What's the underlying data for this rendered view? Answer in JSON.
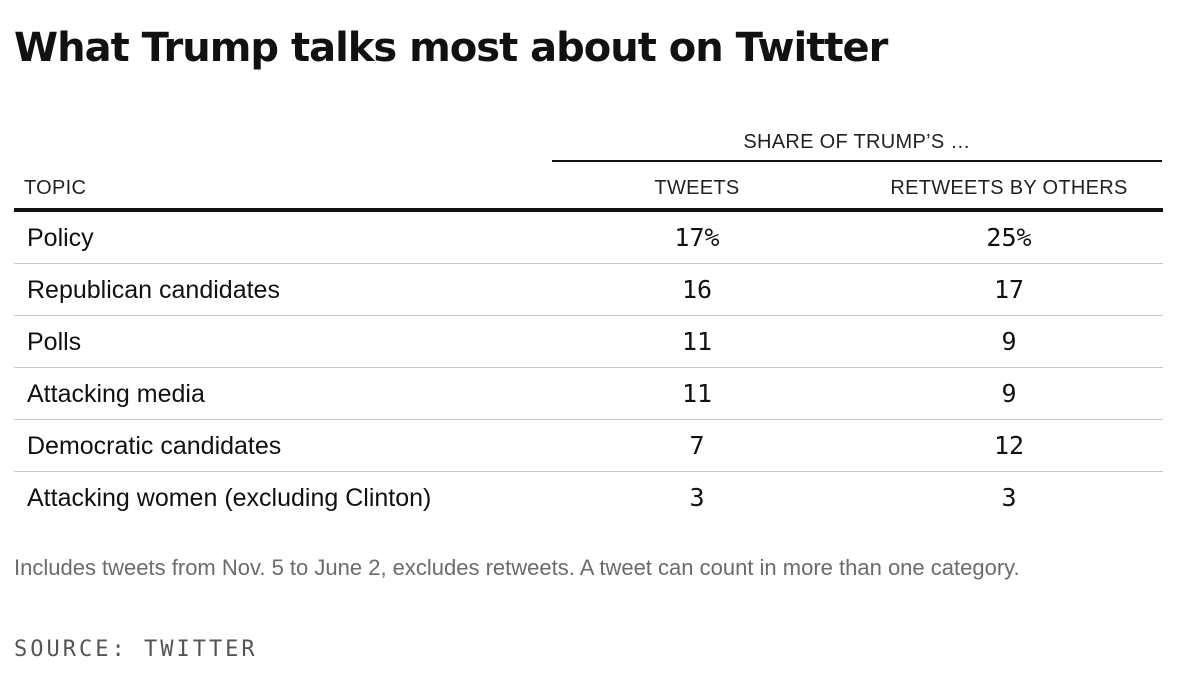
{
  "chart_data": {
    "type": "table",
    "title": "What Trump talks most about on Twitter",
    "group_header": "SHARE OF TRUMP’S …",
    "columns": [
      "TOPIC",
      "TWEETS",
      "RETWEETS BY OTHERS"
    ],
    "rows": [
      {
        "topic": "Policy",
        "tweets": "17%",
        "retweets": "25%"
      },
      {
        "topic": "Republican candidates",
        "tweets": "16",
        "retweets": "17"
      },
      {
        "topic": "Polls",
        "tweets": "11",
        "retweets": "9"
      },
      {
        "topic": "Attacking media",
        "tweets": "11",
        "retweets": "9"
      },
      {
        "topic": "Democratic candidates",
        "tweets": "7",
        "retweets": "12"
      },
      {
        "topic": "Attacking women (excluding Clinton)",
        "tweets": "3",
        "retweets": "3"
      }
    ],
    "note": "Includes tweets from Nov. 5 to June 2, excludes retweets. A tweet can count in more than one category.",
    "source": "SOURCE: TWITTER"
  }
}
